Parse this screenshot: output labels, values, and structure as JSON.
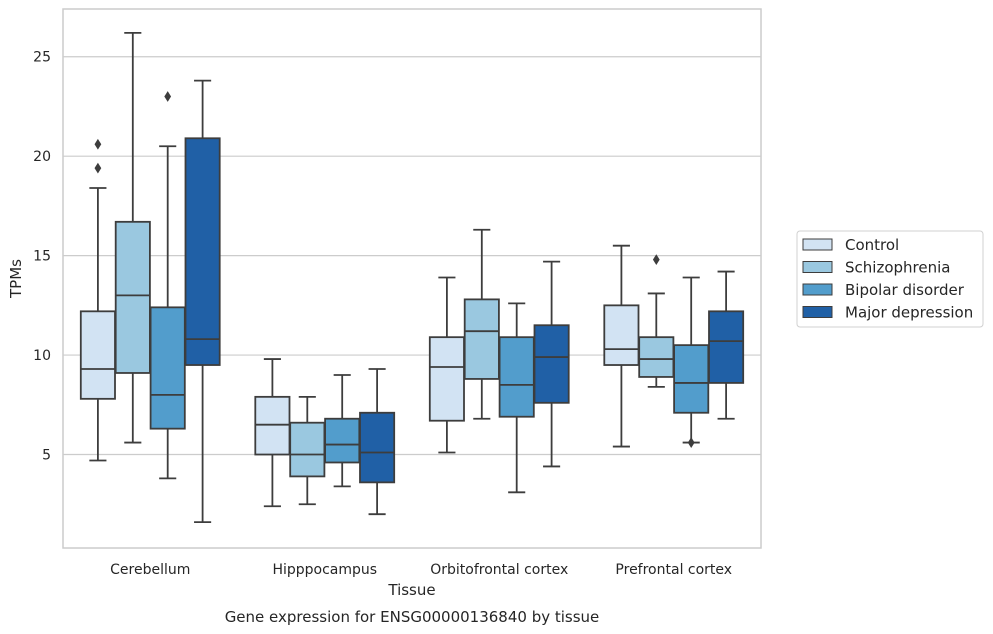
{
  "chart_data": {
    "type": "box",
    "categories": [
      "Cerebellum",
      "Hipppocampus",
      "Orbitofrontal cortex",
      "Prefrontal cortex"
    ],
    "series": [
      {
        "name": "Control",
        "color": "#d2e3f3",
        "boxes": [
          {
            "whislo": 4.7,
            "q1": 7.8,
            "med": 9.3,
            "q3": 12.2,
            "whishi": 18.4,
            "fliers": [
              19.4,
              20.6
            ]
          },
          {
            "whislo": 2.4,
            "q1": 5.0,
            "med": 6.5,
            "q3": 7.9,
            "whishi": 9.8,
            "fliers": []
          },
          {
            "whislo": 5.1,
            "q1": 6.7,
            "med": 9.4,
            "q3": 10.9,
            "whishi": 13.9,
            "fliers": []
          },
          {
            "whislo": 5.4,
            "q1": 9.5,
            "med": 10.3,
            "q3": 12.5,
            "whishi": 15.5,
            "fliers": []
          }
        ]
      },
      {
        "name": "Schizophrenia",
        "color": "#9ac8e0",
        "boxes": [
          {
            "whislo": 5.6,
            "q1": 9.1,
            "med": 13.0,
            "q3": 16.7,
            "whishi": 26.2,
            "fliers": []
          },
          {
            "whislo": 2.5,
            "q1": 3.9,
            "med": 5.0,
            "q3": 6.6,
            "whishi": 7.9,
            "fliers": []
          },
          {
            "whislo": 6.8,
            "q1": 8.8,
            "med": 11.2,
            "q3": 12.8,
            "whishi": 16.3,
            "fliers": []
          },
          {
            "whislo": 8.4,
            "q1": 8.9,
            "med": 9.8,
            "q3": 10.9,
            "whishi": 13.1,
            "fliers": [
              14.8
            ]
          }
        ]
      },
      {
        "name": "Bipolar disorder",
        "color": "#529dcc",
        "boxes": [
          {
            "whislo": 3.8,
            "q1": 6.3,
            "med": 8.0,
            "q3": 12.4,
            "whishi": 20.5,
            "fliers": [
              23.0
            ]
          },
          {
            "whislo": 3.4,
            "q1": 4.6,
            "med": 5.5,
            "q3": 6.8,
            "whishi": 9.0,
            "fliers": []
          },
          {
            "whislo": 3.1,
            "q1": 6.9,
            "med": 8.5,
            "q3": 10.9,
            "whishi": 12.6,
            "fliers": []
          },
          {
            "whislo": 5.6,
            "q1": 7.1,
            "med": 8.6,
            "q3": 10.5,
            "whishi": 13.9,
            "fliers": [
              5.6
            ]
          }
        ]
      },
      {
        "name": "Major depression",
        "color": "#2060a6",
        "boxes": [
          {
            "whislo": 1.6,
            "q1": 9.5,
            "med": 10.8,
            "q3": 20.9,
            "whishi": 23.8,
            "fliers": []
          },
          {
            "whislo": 2.0,
            "q1": 3.6,
            "med": 5.1,
            "q3": 7.1,
            "whishi": 9.3,
            "fliers": []
          },
          {
            "whislo": 4.4,
            "q1": 7.6,
            "med": 9.9,
            "q3": 11.5,
            "whishi": 14.7,
            "fliers": []
          },
          {
            "whislo": 6.8,
            "q1": 8.6,
            "med": 10.7,
            "q3": 12.2,
            "whishi": 14.2,
            "fliers": []
          }
        ]
      }
    ],
    "xlabel": "Tissue",
    "ylabel": "TPMs",
    "caption": "Gene expression for ENSG00000136840 by tissue",
    "ylim": [
      0.3,
      27.4
    ],
    "yticks": [
      5,
      10,
      15,
      20,
      25
    ],
    "grid": true,
    "legend_position": "right"
  }
}
